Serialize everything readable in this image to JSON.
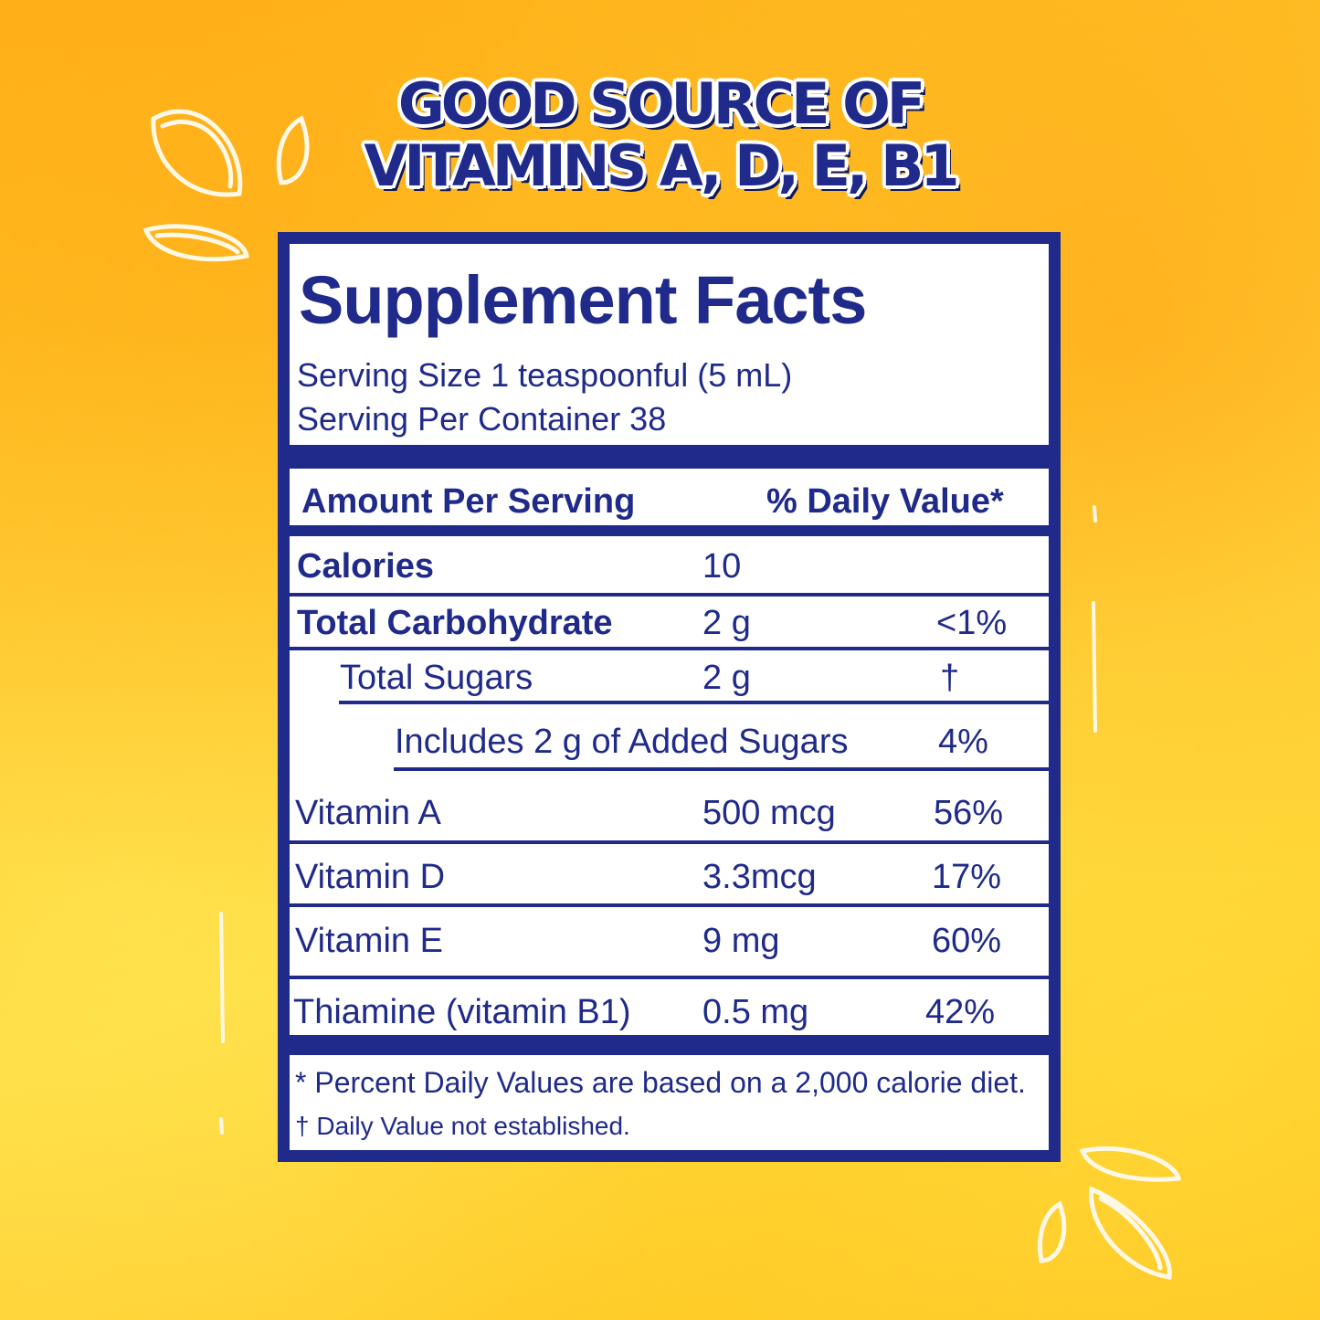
{
  "headline": {
    "line1": "GOOD SOURCE OF",
    "line2": "VITAMINS A, D, E, B1"
  },
  "label": {
    "title": "Supplement Facts",
    "serving_size": "Serving Size 1 teaspoonful (5 mL)",
    "servings_per_container": "Serving Per Container  38",
    "amount_header": "Amount Per Serving",
    "dv_header": "% Daily Value*",
    "rows": [
      {
        "name": "Calories",
        "amount": "10",
        "dv": ""
      },
      {
        "name": "Total Carbohydrate",
        "amount": "2 g",
        "dv": "<1%"
      },
      {
        "name": "Total Sugars",
        "amount": "2 g",
        "dv": "†"
      },
      {
        "name": "Includes  2 g of Added Sugars",
        "amount": "",
        "dv": "4%"
      },
      {
        "name": "Vitamin A",
        "amount": "500 mcg",
        "dv": "56%"
      },
      {
        "name": "Vitamin D",
        "amount": "3.3mcg",
        "dv": "17%"
      },
      {
        "name": "Vitamin E",
        "amount": "9 mg",
        "dv": "60%"
      },
      {
        "name": "Thiamine (vitamin B1)",
        "amount": "0.5 mg",
        "dv": "42%"
      }
    ],
    "footnote1": "* Percent Daily Values are based on a 2,000 calorie diet.",
    "footnote2": "† Daily Value  not established."
  },
  "colors": {
    "navy": "#1f2a8a",
    "background": "#ffc72c",
    "panel": "#ffffff"
  }
}
